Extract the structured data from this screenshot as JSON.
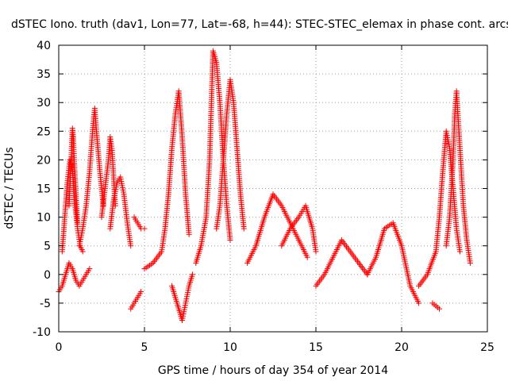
{
  "chart_data": {
    "type": "scatter",
    "title": "dSTEC Iono. truth (dav1, Lon=77, Lat=-68, h=44): STEC-STEC_elemax in phase cont. arcs",
    "xlabel": "GPS time / hours of day 354 of year 2014",
    "ylabel": "dSTEC  / TECUs",
    "xlim": [
      0,
      25
    ],
    "ylim": [
      -10,
      40
    ],
    "xticks": [
      0,
      5,
      10,
      15,
      20,
      25
    ],
    "yticks": [
      -10,
      -5,
      0,
      5,
      10,
      15,
      20,
      25,
      30,
      35,
      40
    ],
    "grid": true,
    "marker": "+",
    "color": "#ff0000",
    "series": [
      {
        "x": [
          0.0,
          0.2,
          0.4,
          0.6,
          0.8,
          1.0,
          1.2,
          1.4,
          1.6,
          1.8
        ],
        "y": [
          -3,
          -2,
          0,
          2,
          1,
          -1,
          -2,
          -1,
          0,
          1
        ]
      },
      {
        "x": [
          0.2,
          0.35,
          0.5,
          0.65,
          0.8,
          0.95,
          1.1,
          1.25,
          1.4
        ],
        "y": [
          4,
          10,
          16,
          20,
          18,
          12,
          8,
          5,
          4
        ]
      },
      {
        "x": [
          0.6,
          0.7,
          0.75,
          0.8,
          0.85,
          0.9,
          1.0,
          1.1
        ],
        "y": [
          12,
          18,
          22,
          25.5,
          24,
          20,
          14,
          9
        ]
      },
      {
        "x": [
          1.2,
          1.4,
          1.6,
          1.8,
          1.9,
          2.0,
          2.1,
          2.2,
          2.4,
          2.6
        ],
        "y": [
          5,
          8,
          12,
          18,
          22,
          26,
          29,
          25,
          18,
          12
        ]
      },
      {
        "x": [
          2.5,
          2.7,
          2.9,
          3.0,
          3.1,
          3.2,
          3.3
        ],
        "y": [
          10,
          15,
          20,
          24,
          22,
          17,
          12
        ]
      },
      {
        "x": [
          3.0,
          3.2,
          3.4,
          3.6,
          3.8,
          4.0,
          4.2
        ],
        "y": [
          8,
          13,
          16,
          17,
          14,
          9,
          5
        ]
      },
      {
        "x": [
          4.2,
          4.4,
          4.6,
          4.8
        ],
        "y": [
          -6,
          -5,
          -4,
          -3
        ]
      },
      {
        "x": [
          4.4,
          4.6,
          4.8,
          5.0
        ],
        "y": [
          10,
          9,
          8,
          8
        ]
      },
      {
        "x": [
          5.0,
          5.5,
          6.0,
          6.2,
          6.4,
          6.6,
          6.8,
          7.0,
          7.2,
          7.4,
          7.6
        ],
        "y": [
          1,
          2,
          4,
          8,
          14,
          22,
          28,
          32,
          24,
          14,
          7
        ]
      },
      {
        "x": [
          6.6,
          6.8,
          7.0,
          7.2,
          7.4,
          7.6,
          7.8
        ],
        "y": [
          -2,
          -4,
          -6,
          -8,
          -5,
          -2,
          0
        ]
      },
      {
        "x": [
          8.0,
          8.3,
          8.6,
          8.8,
          9.0,
          9.2,
          9.4,
          9.6,
          9.8,
          10.0
        ],
        "y": [
          2,
          5,
          10,
          20,
          39,
          37,
          30,
          20,
          12,
          6
        ]
      },
      {
        "x": [
          9.2,
          9.4,
          9.6,
          9.8,
          10.0,
          10.2,
          10.4,
          10.6,
          10.8
        ],
        "y": [
          8,
          12,
          20,
          28,
          34,
          30,
          22,
          14,
          8
        ]
      },
      {
        "x": [
          11.0,
          11.5,
          12.0,
          12.5,
          13.0,
          13.5,
          14.0,
          14.5
        ],
        "y": [
          2,
          5,
          10,
          14,
          12,
          9,
          6,
          3
        ]
      },
      {
        "x": [
          13.0,
          13.5,
          14.0,
          14.4,
          14.8,
          15.0
        ],
        "y": [
          5,
          8,
          10,
          12,
          8,
          4
        ]
      },
      {
        "x": [
          15.0,
          15.5,
          16.0,
          16.5,
          17.0,
          17.5,
          18.0
        ],
        "y": [
          -2,
          0,
          3,
          6,
          4,
          2,
          0
        ]
      },
      {
        "x": [
          18.0,
          18.5,
          19.0,
          19.5,
          20.0,
          20.5,
          21.0
        ],
        "y": [
          0,
          3,
          8,
          9,
          5,
          -2,
          -5
        ]
      },
      {
        "x": [
          21.0,
          21.5,
          22.0,
          22.2,
          22.4,
          22.6,
          22.8,
          23.0,
          23.2,
          23.4
        ],
        "y": [
          -2,
          0,
          4,
          10,
          18,
          25,
          22,
          15,
          8,
          4
        ]
      },
      {
        "x": [
          22.6,
          22.8,
          23.0,
          23.1,
          23.2,
          23.4,
          23.6,
          23.8,
          24.0
        ],
        "y": [
          5,
          10,
          20,
          28,
          32,
          22,
          12,
          6,
          2
        ]
      },
      {
        "x": [
          21.8,
          22.0,
          22.2
        ],
        "y": [
          -5,
          -5.5,
          -6
        ]
      }
    ]
  }
}
